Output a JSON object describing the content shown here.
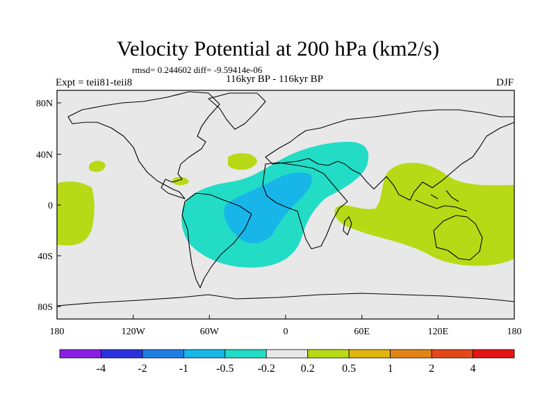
{
  "title": "Velocity Potential at 200 hPa (km2/s)",
  "stats": "rmsd= 0.244602 diff= -9.59414e-06",
  "period": "116kyr BP - 116kyr BP",
  "experiment": "Expt = teii81-teii8",
  "season": "DJF",
  "axes": {
    "lon_labels": [
      "180",
      "120W",
      "60W",
      "0",
      "60E",
      "120E",
      "180"
    ],
    "lat_labels": [
      "80N",
      "40N",
      "0",
      "40S",
      "80S"
    ]
  },
  "colorbar": {
    "labels": [
      "-4",
      "-2",
      "-1",
      "-0.5",
      "-0.2",
      "0.2",
      "0.5",
      "1",
      "2",
      "4"
    ],
    "colors": [
      "#8a1ee6",
      "#2c33de",
      "#1e7ee0",
      "#18b6e8",
      "#22dcc6",
      "#e8e8e8",
      "#b8d916",
      "#e0b60c",
      "#e48418",
      "#e3481a",
      "#e61414"
    ]
  },
  "colors": {
    "background": "#e8e8e8",
    "positive_weak": "#b8d916",
    "negative_weak": "#22dcc6",
    "negative_mid": "#18b6e8"
  }
}
